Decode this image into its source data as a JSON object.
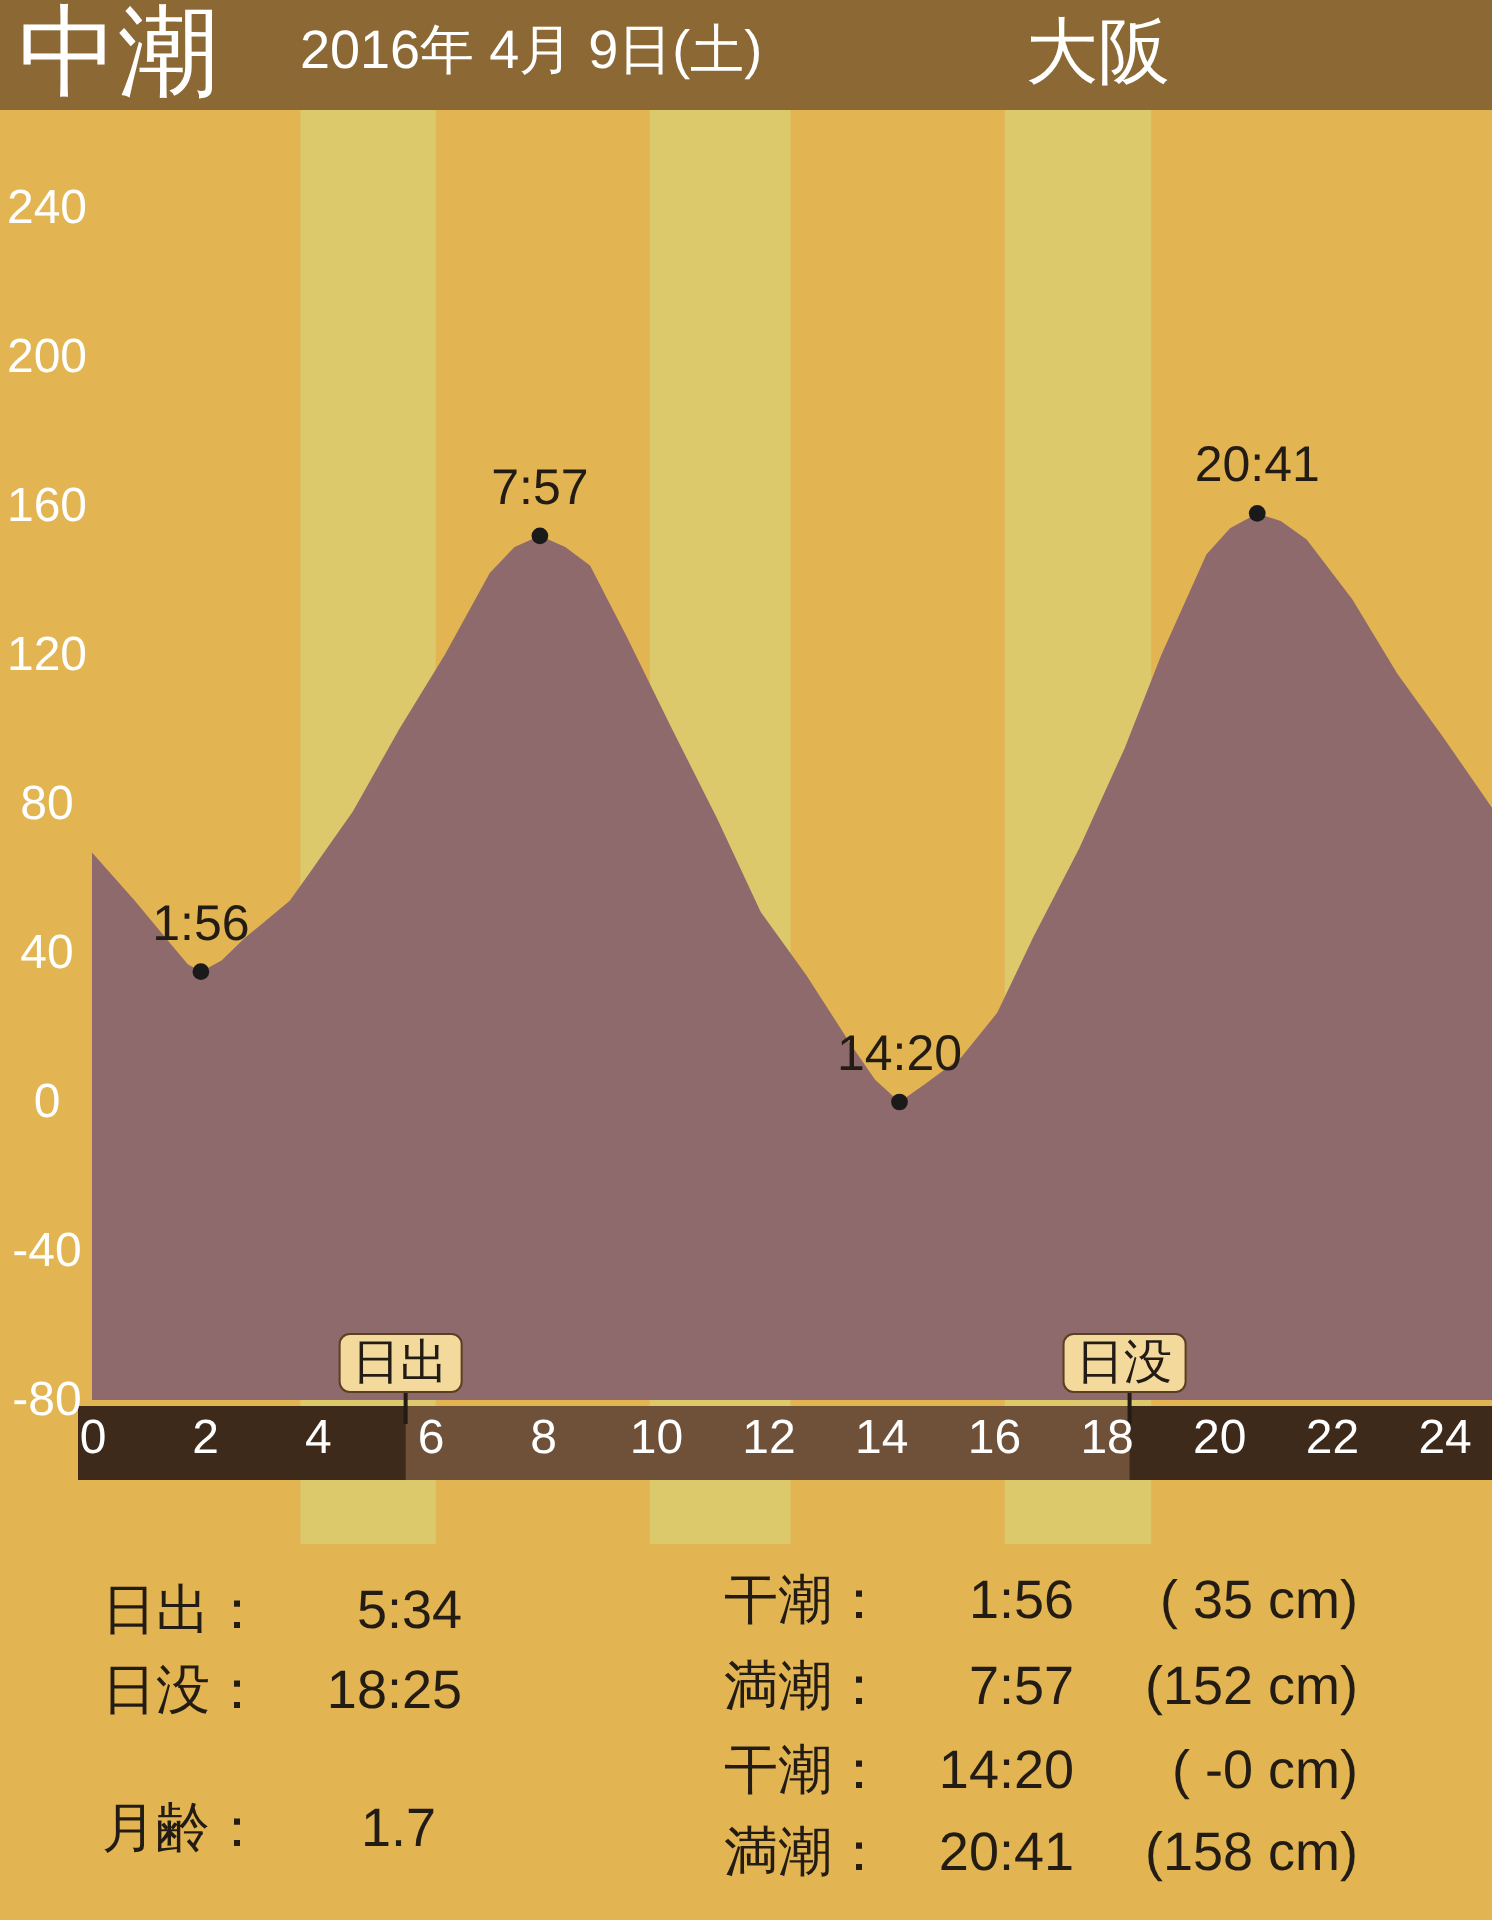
{
  "chart_data": {
    "type": "area",
    "title": "中潮",
    "subtitle": "2016年 4月 9日(土)",
    "xlim": [
      0,
      24.85
    ],
    "xticks": [
      0,
      2,
      4,
      6,
      8,
      10,
      12,
      14,
      16,
      18,
      20,
      22,
      24
    ],
    "ylim": [
      -80,
      240
    ],
    "yticks": [
      -80,
      -40,
      0,
      40,
      80,
      120,
      160,
      200,
      240
    ],
    "series": [
      {
        "color": "#8e6a6c",
        "marker": "none",
        "x": [
          0,
          0.76,
          1.42,
          1.7,
          1.933,
          2.3,
          2.71,
          3.51,
          3.84,
          4.63,
          5.45,
          6.26,
          7.06,
          7.5,
          7.95,
          8.4,
          8.84,
          9.49,
          10.3,
          11.1,
          11.87,
          12.68,
          13.49,
          13.9,
          14.333,
          14.8,
          15.43,
          16.07,
          16.7,
          17.52,
          18.33,
          18.98,
          19.78,
          20.2,
          20.683,
          21.1,
          21.56,
          22.37,
          23.17,
          23.98,
          24.85
        ],
        "values": [
          67,
          54,
          42,
          37,
          35,
          38,
          44,
          54,
          61,
          78,
          100,
          120,
          142,
          149,
          152,
          149,
          144,
          125,
          100,
          76,
          51,
          34,
          15,
          6,
          0,
          5,
          12,
          24,
          44,
          68,
          95,
          120,
          147,
          154,
          158,
          156,
          151,
          135,
          115,
          98,
          79
        ]
      },
      {
        "type": "scatter",
        "color": "#1a1a1a",
        "marker": "circle",
        "x": [
          1.933,
          7.95,
          14.333,
          20.683
        ],
        "values": [
          35,
          152,
          0,
          158
        ]
      }
    ],
    "bands": [
      {
        "axis": "x",
        "from": 3.7,
        "to": 6.1,
        "color": "#dcc96c"
      },
      {
        "axis": "x",
        "from": 9.9,
        "to": 12.4,
        "color": "#dcc96c"
      },
      {
        "axis": "x",
        "from": 16.2,
        "to": 18.8,
        "color": "#dcc96c"
      },
      {
        "axis": "y",
        "from": -80,
        "to": 0,
        "color": "#8e6a6c"
      }
    ],
    "ref_lines": [
      {
        "axis": "x",
        "value": 5.567,
        "label": "日出"
      },
      {
        "axis": "x",
        "value": 18.417,
        "label": "日没"
      }
    ],
    "annotations": [
      "大阪",
      {
        "text": "1:56",
        "x": 1.933,
        "y": 35
      },
      {
        "text": "7:57",
        "x": 7.95,
        "y": 152
      },
      {
        "text": "14:20",
        "x": 14.333,
        "y": 0
      },
      {
        "text": "20:41",
        "x": 20.683,
        "y": 158
      },
      "日出：",
      "5:34",
      "日没：",
      "18:25",
      "月齢：",
      "1.7",
      "干潮：",
      "1:56",
      "( 35 cm)",
      "満潮：",
      "7:57",
      "(152 cm)",
      "干潮：",
      "14:20",
      "( -0 cm)",
      "満潮：",
      "20:41",
      "(158 cm)"
    ]
  }
}
